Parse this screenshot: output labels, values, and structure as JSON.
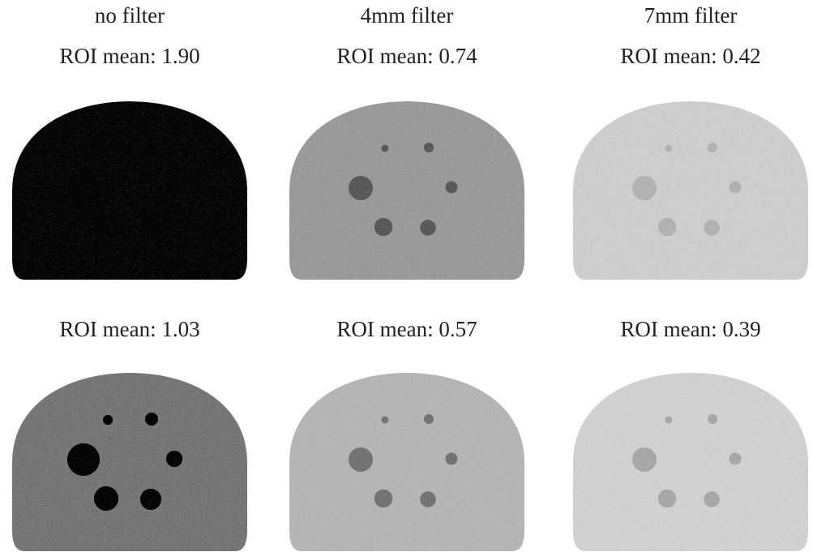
{
  "columns": [
    "no filter",
    "4mm filter",
    "7mm filter"
  ],
  "rows": [
    [
      "ROI mean: 1.90",
      "ROI mean: 0.74",
      "ROI mean: 0.42"
    ],
    [
      "ROI mean: 1.03",
      "ROI mean: 0.57",
      "ROI mean: 0.39"
    ]
  ]
}
